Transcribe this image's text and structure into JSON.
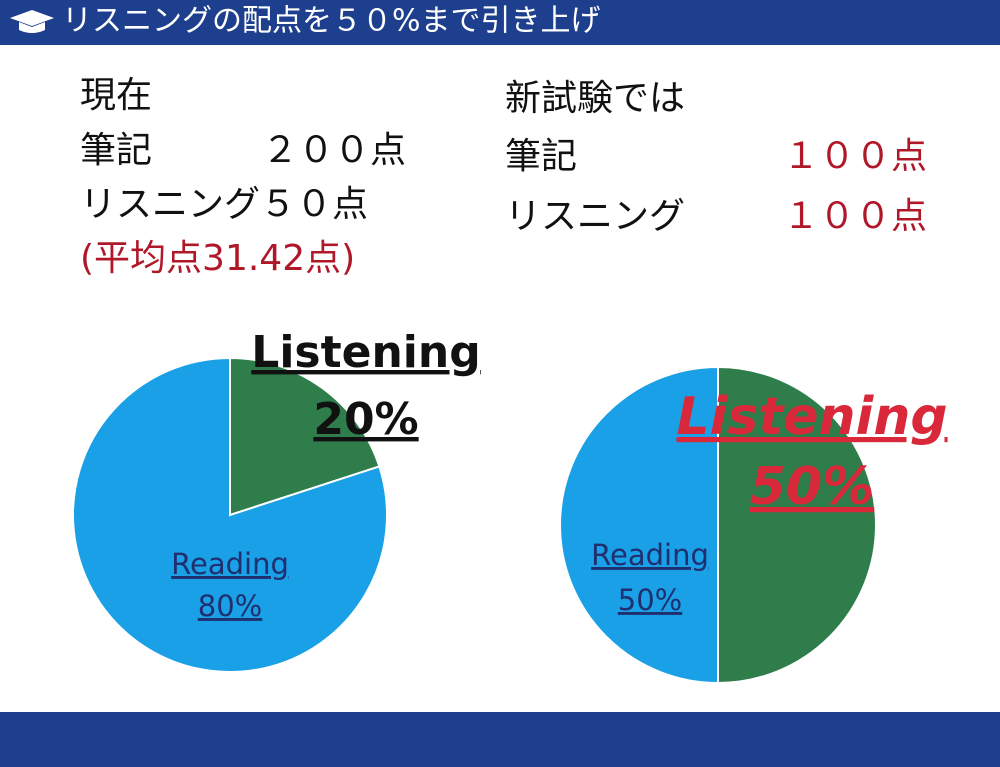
{
  "header": {
    "title": "リスニングの配点を５０%まで引き上げ"
  },
  "current": {
    "heading": "現在",
    "rows": [
      {
        "label": "筆記",
        "score": "２００点"
      },
      {
        "label": "リスニング５０点"
      }
    ],
    "note": "(平均点31.42点)"
  },
  "new": {
    "heading": "新試験では",
    "rows": [
      {
        "label": "筆記",
        "score": "１００点"
      },
      {
        "label": "リスニング",
        "score": "１００点"
      }
    ]
  },
  "chart_data": [
    {
      "type": "pie",
      "categories": [
        "Listening",
        "Reading"
      ],
      "values": [
        20,
        80
      ],
      "value_labels": [
        "20%",
        "80%"
      ],
      "colors": [
        "#2f7d4b",
        "#1aa0e6"
      ]
    },
    {
      "type": "pie",
      "categories": [
        "Listening",
        "Reading"
      ],
      "values": [
        50,
        50
      ],
      "value_labels": [
        "50%",
        "50%"
      ],
      "colors": [
        "#2f7d4b",
        "#1aa0e6"
      ]
    }
  ]
}
